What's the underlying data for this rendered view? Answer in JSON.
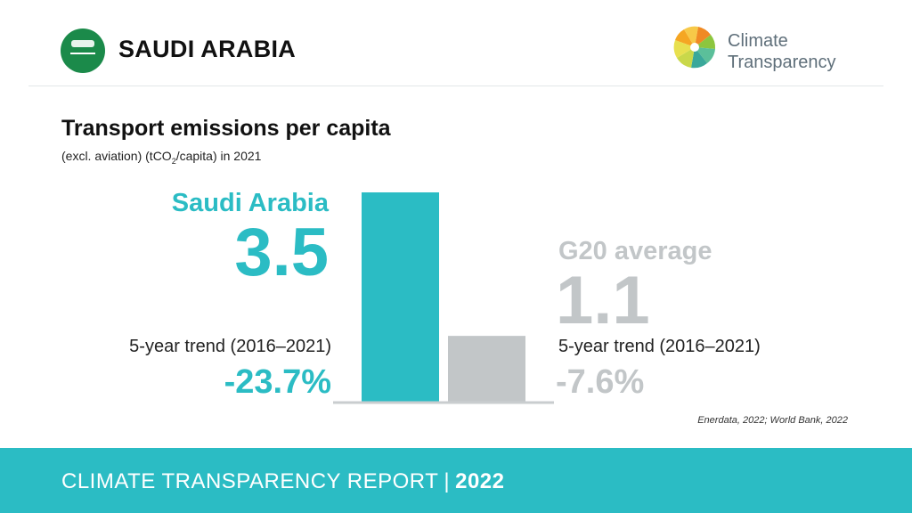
{
  "header": {
    "country": "SAUDI ARABIA",
    "logo_line1": "Climate",
    "logo_line2": "Transparency"
  },
  "colors": {
    "accent": "#2bbcc4",
    "g20": "#c2c6c8",
    "flag": "#1b8a4a"
  },
  "chart_data": {
    "type": "bar",
    "title": "Transport emissions per capita",
    "subtitle_prefix": "(excl. aviation) (tCO",
    "subtitle_sub": "2",
    "subtitle_suffix": "/capita) in 2021",
    "categories": [
      "Saudi Arabia",
      "G20 average"
    ],
    "values": [
      3.5,
      1.1
    ],
    "value_labels": [
      "3.5",
      "1.1"
    ],
    "trend_label": "5-year trend (2016–2021)",
    "trends": [
      "-23.7%",
      "-7.6%"
    ],
    "ylim": [
      0,
      3.5
    ],
    "grid": false
  },
  "source": "Enerdata, 2022; World Bank, 2022",
  "footer": {
    "text": "CLIMATE TRANSPARENCY REPORT",
    "separator": "|",
    "year": "2022"
  }
}
